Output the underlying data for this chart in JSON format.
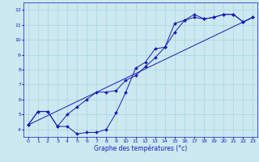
{
  "xlabel": "Graphe des températures (°c)",
  "xlim": [
    -0.5,
    23.5
  ],
  "ylim": [
    3.5,
    12.5
  ],
  "xticks": [
    0,
    1,
    2,
    3,
    4,
    5,
    6,
    7,
    8,
    9,
    10,
    11,
    12,
    13,
    14,
    15,
    16,
    17,
    18,
    19,
    20,
    21,
    22,
    23
  ],
  "yticks": [
    4,
    5,
    6,
    7,
    8,
    9,
    10,
    11,
    12
  ],
  "bg_color": "#cce8f0",
  "line_color": "#1a1ab8",
  "grid_color": "#9fcfdf",
  "line1_x": [
    0,
    1,
    2,
    3,
    4,
    5,
    6,
    7,
    8,
    9,
    10,
    11,
    12,
    13,
    14,
    15,
    16,
    17,
    18,
    19,
    20,
    21,
    22,
    23
  ],
  "line1_y": [
    4.3,
    5.2,
    5.2,
    4.2,
    4.2,
    3.7,
    3.8,
    3.8,
    4.0,
    5.1,
    6.5,
    8.1,
    8.5,
    9.4,
    9.5,
    11.1,
    11.3,
    11.7,
    11.4,
    11.5,
    11.7,
    11.7,
    11.2,
    11.5
  ],
  "line2_x": [
    0,
    1,
    2,
    3,
    4,
    5,
    6,
    7,
    8,
    9,
    10,
    11,
    12,
    13,
    14,
    15,
    16,
    17,
    18,
    19,
    20,
    21,
    22,
    23
  ],
  "line2_y": [
    4.3,
    5.2,
    5.2,
    4.2,
    5.0,
    5.5,
    6.0,
    6.5,
    6.5,
    6.6,
    7.3,
    7.6,
    8.2,
    8.8,
    9.5,
    10.5,
    11.3,
    11.5,
    11.4,
    11.5,
    11.7,
    11.7,
    11.2,
    11.5
  ],
  "line3_x": [
    0,
    23
  ],
  "line3_y": [
    4.3,
    11.5
  ],
  "marker_size": 2.0,
  "lw": 0.7,
  "tick_fontsize": 4.5,
  "xlabel_fontsize": 5.5
}
